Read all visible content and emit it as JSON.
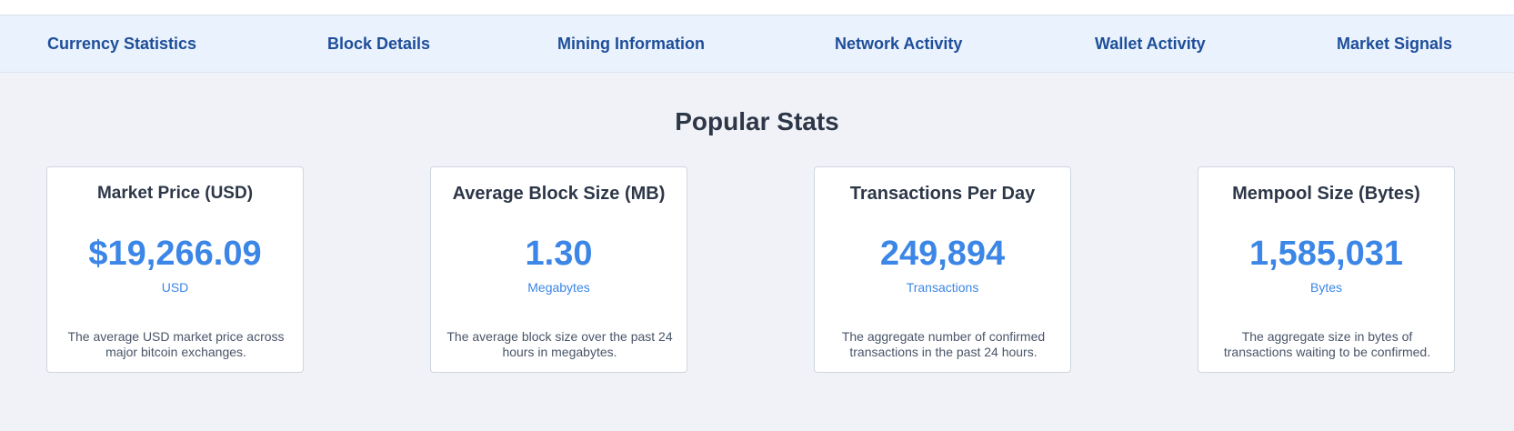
{
  "nav": {
    "items": [
      {
        "label": "Currency Statistics"
      },
      {
        "label": "Block Details"
      },
      {
        "label": "Mining Information"
      },
      {
        "label": "Network Activity"
      },
      {
        "label": "Wallet Activity"
      },
      {
        "label": "Market Signals"
      }
    ]
  },
  "main": {
    "title": "Popular Stats",
    "cards": [
      {
        "title": "Market Price (USD)",
        "value": "$19,266.09",
        "unit": "USD",
        "description": "The average USD market price across major bitcoin exchanges."
      },
      {
        "title": "Average Block Size (MB)",
        "value": "1.30",
        "unit": "Megabytes",
        "description": "The average block size over the past 24 hours in megabytes."
      },
      {
        "title": "Transactions Per Day",
        "value": "249,894",
        "unit": "Transactions",
        "description": "The aggregate number of confirmed transactions in the past 24 hours."
      },
      {
        "title": "Mempool Size (Bytes)",
        "value": "1,585,031",
        "unit": "Bytes",
        "description": "The aggregate size in bytes of transactions waiting to be confirmed."
      }
    ]
  },
  "colors": {
    "accent": "#3b86e6",
    "nav_text": "#1e4e9a",
    "nav_background": "#eaf2fd",
    "page_background": "#f0f2f7"
  }
}
